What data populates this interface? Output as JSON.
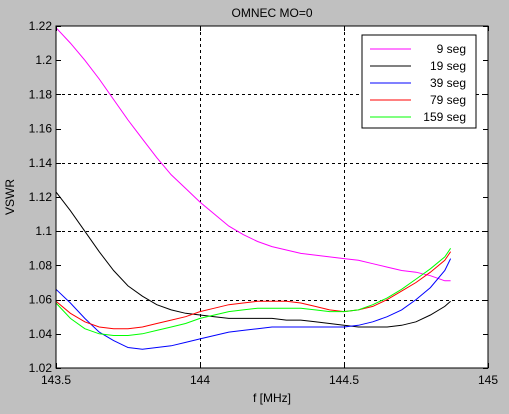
{
  "chart_data": {
    "type": "line",
    "title": "OMNEC MO=0",
    "xlabel": "f [MHz]",
    "ylabel": "VSWR",
    "xlim": [
      143.5,
      145
    ],
    "ylim": [
      1.02,
      1.22
    ],
    "xticks": [
      143.5,
      144,
      144.5,
      145
    ],
    "xtick_labels": [
      "143.5",
      "144",
      "144.5",
      "145"
    ],
    "yticks": [
      1.02,
      1.04,
      1.06,
      1.08,
      1.1,
      1.12,
      1.14,
      1.16,
      1.18,
      1.2,
      1.22
    ],
    "ytick_labels": [
      "1.02",
      "1.04",
      "1.06",
      "1.08",
      "1.1",
      "1.12",
      "1.14",
      "1.16",
      "1.18",
      "1.2",
      "1.22"
    ],
    "grid": true,
    "legend_position": "top-right",
    "series": [
      {
        "name": "9 seg",
        "color": "#ff00ff",
        "x": [
          143.5,
          143.55,
          143.6,
          143.65,
          143.7,
          143.75,
          143.8,
          143.85,
          143.9,
          143.95,
          144.0,
          144.05,
          144.1,
          144.15,
          144.2,
          144.25,
          144.3,
          144.35,
          144.4,
          144.45,
          144.5,
          144.55,
          144.6,
          144.65,
          144.7,
          144.75,
          144.8,
          144.85,
          144.87
        ],
        "y": [
          1.219,
          1.21,
          1.2,
          1.189,
          1.177,
          1.165,
          1.154,
          1.143,
          1.133,
          1.125,
          1.117,
          1.11,
          1.103,
          1.098,
          1.094,
          1.091,
          1.089,
          1.087,
          1.086,
          1.085,
          1.084,
          1.083,
          1.081,
          1.079,
          1.077,
          1.076,
          1.074,
          1.071,
          1.071
        ]
      },
      {
        "name": "19 seg",
        "color": "#000000",
        "x": [
          143.5,
          143.55,
          143.6,
          143.65,
          143.7,
          143.75,
          143.8,
          143.85,
          143.9,
          143.95,
          144.0,
          144.05,
          144.1,
          144.15,
          144.2,
          144.25,
          144.3,
          144.35,
          144.4,
          144.45,
          144.5,
          144.55,
          144.6,
          144.65,
          144.7,
          144.75,
          144.8,
          144.85,
          144.87
        ],
        "y": [
          1.123,
          1.112,
          1.1,
          1.088,
          1.077,
          1.068,
          1.062,
          1.057,
          1.054,
          1.052,
          1.051,
          1.05,
          1.049,
          1.049,
          1.049,
          1.049,
          1.048,
          1.048,
          1.047,
          1.046,
          1.045,
          1.044,
          1.044,
          1.044,
          1.045,
          1.047,
          1.051,
          1.056,
          1.059
        ]
      },
      {
        "name": "39 seg",
        "color": "#0000ff",
        "x": [
          143.5,
          143.55,
          143.6,
          143.65,
          143.7,
          143.75,
          143.8,
          143.85,
          143.9,
          143.95,
          144.0,
          144.05,
          144.1,
          144.15,
          144.2,
          144.25,
          144.3,
          144.35,
          144.4,
          144.45,
          144.5,
          144.55,
          144.6,
          144.65,
          144.7,
          144.75,
          144.8,
          144.85,
          144.87
        ],
        "y": [
          1.066,
          1.058,
          1.049,
          1.041,
          1.036,
          1.032,
          1.031,
          1.032,
          1.033,
          1.035,
          1.037,
          1.039,
          1.041,
          1.042,
          1.043,
          1.044,
          1.044,
          1.044,
          1.044,
          1.044,
          1.044,
          1.045,
          1.047,
          1.05,
          1.054,
          1.06,
          1.067,
          1.077,
          1.084
        ]
      },
      {
        "name": "79 seg",
        "color": "#ff0000",
        "x": [
          143.5,
          143.55,
          143.6,
          143.65,
          143.7,
          143.75,
          143.8,
          143.85,
          143.9,
          143.95,
          144.0,
          144.05,
          144.1,
          144.15,
          144.2,
          144.25,
          144.3,
          144.35,
          144.4,
          144.45,
          144.5,
          144.55,
          144.6,
          144.65,
          144.7,
          144.75,
          144.8,
          144.85,
          144.87
        ],
        "y": [
          1.059,
          1.052,
          1.047,
          1.044,
          1.043,
          1.043,
          1.044,
          1.046,
          1.048,
          1.05,
          1.053,
          1.055,
          1.057,
          1.058,
          1.059,
          1.059,
          1.059,
          1.058,
          1.056,
          1.054,
          1.053,
          1.054,
          1.056,
          1.06,
          1.065,
          1.07,
          1.076,
          1.083,
          1.088
        ]
      },
      {
        "name": "159 seg",
        "color": "#00ff00",
        "x": [
          143.5,
          143.55,
          143.6,
          143.65,
          143.7,
          143.75,
          143.8,
          143.85,
          143.9,
          143.95,
          144.0,
          144.05,
          144.1,
          144.15,
          144.2,
          144.25,
          144.3,
          144.35,
          144.4,
          144.45,
          144.5,
          144.55,
          144.6,
          144.65,
          144.7,
          144.75,
          144.8,
          144.85,
          144.87
        ],
        "y": [
          1.058,
          1.049,
          1.043,
          1.04,
          1.039,
          1.039,
          1.04,
          1.042,
          1.044,
          1.046,
          1.049,
          1.051,
          1.053,
          1.054,
          1.055,
          1.055,
          1.055,
          1.055,
          1.054,
          1.053,
          1.053,
          1.054,
          1.057,
          1.061,
          1.066,
          1.072,
          1.078,
          1.085,
          1.09
        ]
      }
    ]
  }
}
